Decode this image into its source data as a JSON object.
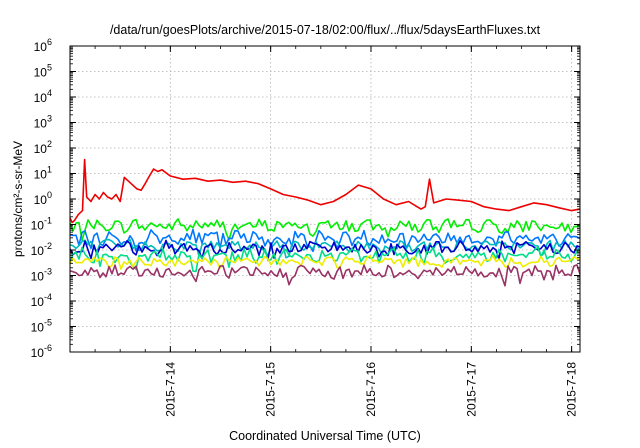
{
  "chart_data": {
    "type": "line",
    "title": "/data/run/goesPlots/archive/2015-07-18/02:00/flux/../flux/5daysEarthFluxes.txt",
    "xlabel": "Coordinated Universal Time (UTC)",
    "ylabel": "protons/cm²-s-sr-MeV",
    "yscale": "log",
    "ylim": [
      1e-06,
      1000000.0
    ],
    "xlim": [
      "2015-07-13 00:00",
      "2015-07-18 02:00"
    ],
    "grid": true,
    "y_ticks": [
      {
        "base": "10",
        "exp": "-6",
        "value": 1e-06
      },
      {
        "base": "10",
        "exp": "-5",
        "value": 1e-05
      },
      {
        "base": "10",
        "exp": "-4",
        "value": 0.0001
      },
      {
        "base": "10",
        "exp": "-3",
        "value": 0.001
      },
      {
        "base": "10",
        "exp": "-2",
        "value": 0.01
      },
      {
        "base": "10",
        "exp": "-1",
        "value": 0.1
      },
      {
        "base": "10",
        "exp": "0",
        "value": 1
      },
      {
        "base": "10",
        "exp": "1",
        "value": 10
      },
      {
        "base": "10",
        "exp": "2",
        "value": 100
      },
      {
        "base": "10",
        "exp": "3",
        "value": 1000
      },
      {
        "base": "10",
        "exp": "4",
        "value": 10000
      },
      {
        "base": "10",
        "exp": "5",
        "value": 100000
      },
      {
        "base": "10",
        "exp": "6",
        "value": 1000000
      }
    ],
    "x_ticks": [
      {
        "label": "2015-7-14",
        "value": "2015-07-14 00:00"
      },
      {
        "label": "2015-7-15",
        "value": "2015-07-15 00:00"
      },
      {
        "label": "2015-7-16",
        "value": "2015-07-16 00:00"
      },
      {
        "label": "2015-7-17",
        "value": "2015-07-17 00:00"
      },
      {
        "label": "2015-7-18",
        "value": "2015-07-18 00:00"
      }
    ],
    "series": [
      {
        "color": "#ee0000",
        "points": [
          [
            "2015-07-13 00:00",
            0.18
          ],
          [
            "2015-07-13 00:30",
            0.12
          ],
          [
            "2015-07-13 01:00",
            0.14
          ],
          [
            "2015-07-13 02:00",
            0.25
          ],
          [
            "2015-07-13 03:00",
            0.35
          ],
          [
            "2015-07-13 03:30",
            35
          ],
          [
            "2015-07-13 04:00",
            1.2
          ],
          [
            "2015-07-13 05:00",
            0.8
          ],
          [
            "2015-07-13 06:00",
            1.5
          ],
          [
            "2015-07-13 07:00",
            1.0
          ],
          [
            "2015-07-13 08:00",
            1.8
          ],
          [
            "2015-07-13 09:00",
            1.2
          ],
          [
            "2015-07-13 10:00",
            1.0
          ],
          [
            "2015-07-13 11:00",
            1.5
          ],
          [
            "2015-07-13 12:00",
            0.8
          ],
          [
            "2015-07-13 13:00",
            7
          ],
          [
            "2015-07-13 14:00",
            5
          ],
          [
            "2015-07-13 15:00",
            3.5
          ],
          [
            "2015-07-13 16:00",
            2.5
          ],
          [
            "2015-07-13 17:00",
            2.2
          ],
          [
            "2015-07-13 18:00",
            4
          ],
          [
            "2015-07-13 19:00",
            8
          ],
          [
            "2015-07-13 20:00",
            15
          ],
          [
            "2015-07-13 21:00",
            12
          ],
          [
            "2015-07-13 22:00",
            14
          ],
          [
            "2015-07-14 00:00",
            8
          ],
          [
            "2015-07-14 03:00",
            6
          ],
          [
            "2015-07-14 06:00",
            6.5
          ],
          [
            "2015-07-14 09:00",
            5
          ],
          [
            "2015-07-14 12:00",
            5.5
          ],
          [
            "2015-07-14 15:00",
            4.5
          ],
          [
            "2015-07-14 18:00",
            5
          ],
          [
            "2015-07-14 21:00",
            4
          ],
          [
            "2015-07-15 00:00",
            2.5
          ],
          [
            "2015-07-15 03:00",
            1.5
          ],
          [
            "2015-07-15 06:00",
            1.2
          ],
          [
            "2015-07-15 09:00",
            0.9
          ],
          [
            "2015-07-15 12:00",
            0.6
          ],
          [
            "2015-07-15 15:00",
            0.8
          ],
          [
            "2015-07-15 18:00",
            1.5
          ],
          [
            "2015-07-15 21:00",
            3.5
          ],
          [
            "2015-07-16 00:00",
            2.5
          ],
          [
            "2015-07-16 03:00",
            1.0
          ],
          [
            "2015-07-16 06:00",
            0.6
          ],
          [
            "2015-07-16 09:00",
            0.8
          ],
          [
            "2015-07-16 11:00",
            0.5
          ],
          [
            "2015-07-16 12:00",
            0.4
          ],
          [
            "2015-07-16 13:00",
            0.5
          ],
          [
            "2015-07-16 14:00",
            6
          ],
          [
            "2015-07-16 15:00",
            0.7
          ],
          [
            "2015-07-16 18:00",
            1.0
          ],
          [
            "2015-07-16 21:00",
            0.9
          ],
          [
            "2015-07-17 00:00",
            0.8
          ],
          [
            "2015-07-17 03:00",
            0.5
          ],
          [
            "2015-07-17 06:00",
            0.4
          ],
          [
            "2015-07-17 09:00",
            0.35
          ],
          [
            "2015-07-17 12:00",
            0.5
          ],
          [
            "2015-07-17 15:00",
            0.7
          ],
          [
            "2015-07-17 18:00",
            0.6
          ],
          [
            "2015-07-17 21:00",
            0.45
          ],
          [
            "2015-07-18 00:00",
            0.35
          ],
          [
            "2015-07-18 02:00",
            0.4
          ]
        ]
      },
      {
        "color": "#00ee00",
        "level": 0.09
      },
      {
        "color": "#0077ff",
        "level": 0.03
      },
      {
        "color": "#00bbbb",
        "level": 0.015
      },
      {
        "color": "#0000cc",
        "level": 0.012
      },
      {
        "color": "#00dd88",
        "level": 0.006
      },
      {
        "color": "#eeee00",
        "level": 0.0035
      },
      {
        "color": "#993366",
        "level": 0.0014
      }
    ]
  }
}
